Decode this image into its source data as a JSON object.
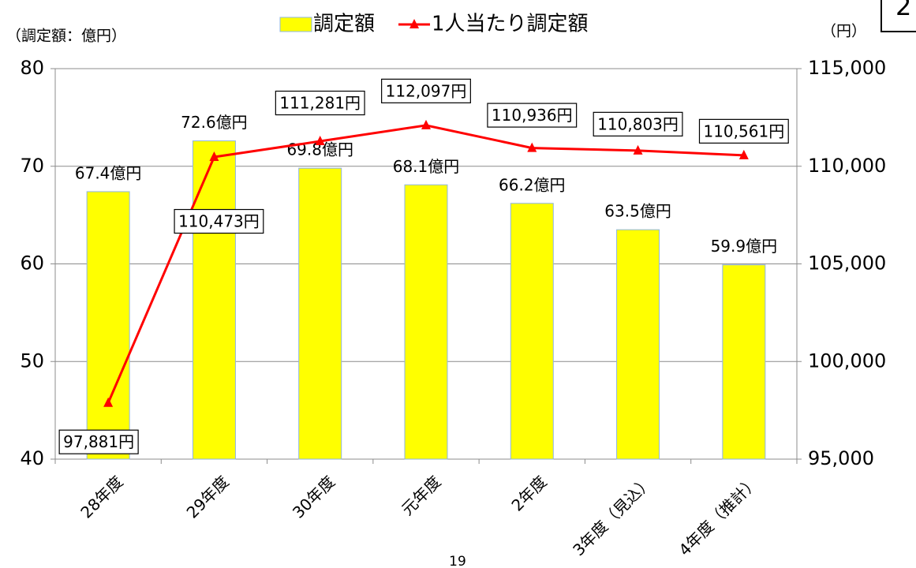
{
  "chart_data": {
    "type": "combo",
    "y_unit_label": "（調定額：億円）",
    "y2_unit_label": "（円）",
    "page_number": "19",
    "badge": "2",
    "categories": [
      "28年度",
      "29年度",
      "30年度",
      "元年度",
      "2年度",
      "3年度（見込）",
      "4年度（推計）"
    ],
    "series": [
      {
        "name": "調定額",
        "type": "bar",
        "axis": "y",
        "color": "#ffff00",
        "values": [
          67.4,
          72.6,
          69.8,
          68.1,
          66.2,
          63.5,
          59.9
        ],
        "value_labels": [
          "67.4億円",
          "72.6億円",
          "69.8億円",
          "68.1億円",
          "66.2億円",
          "63.5億円",
          "59.9億円"
        ]
      },
      {
        "name": "1人当たり調定額",
        "type": "line",
        "axis": "y2",
        "color": "#ff0000",
        "values": [
          97881,
          110473,
          111281,
          112097,
          110936,
          110803,
          110561
        ],
        "value_labels": [
          "97,881円",
          "110,473円",
          "111,281円",
          "112,097円",
          "110,936円",
          "110,803円",
          "110,561円"
        ]
      }
    ],
    "ylim": [
      40,
      80
    ],
    "yticks": [
      40,
      50,
      60,
      70,
      80
    ],
    "y2lim": [
      95000,
      115000
    ],
    "y2ticks": [
      {
        "value": 95000,
        "label": "95,000"
      },
      {
        "value": 100000,
        "label": "100,000"
      },
      {
        "value": 105000,
        "label": "105,000"
      },
      {
        "value": 110000,
        "label": "110,000"
      },
      {
        "value": 115000,
        "label": "115,000"
      }
    ],
    "grid": true
  }
}
